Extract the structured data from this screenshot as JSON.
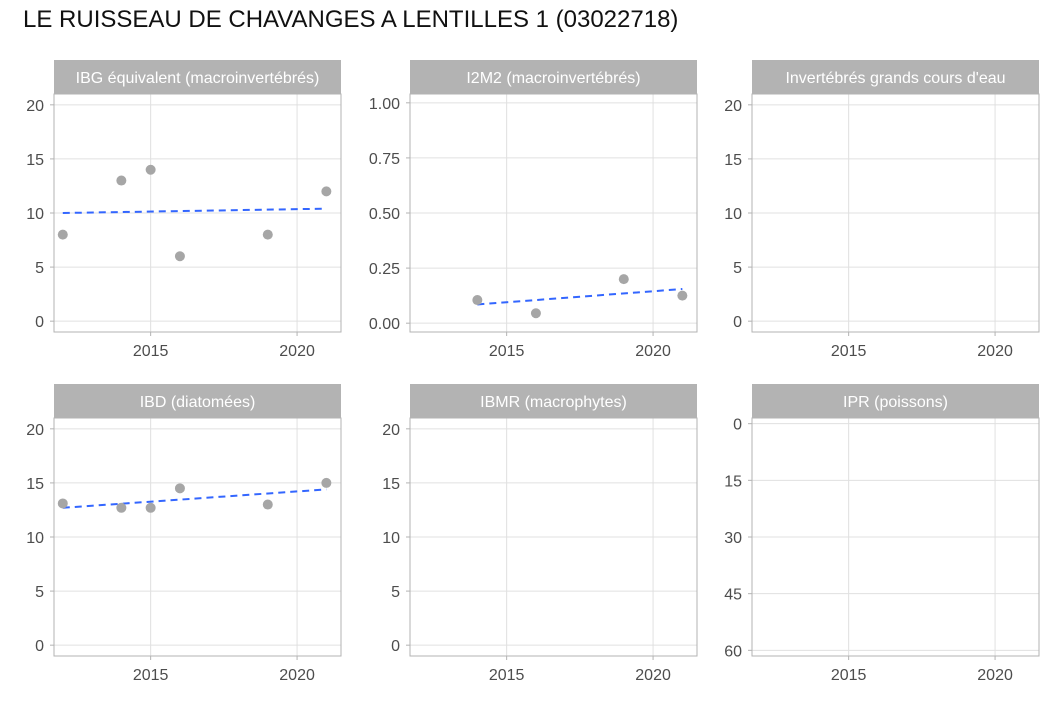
{
  "title": "LE RUISSEAU DE CHAVANGES A LENTILLES 1 (03022718)",
  "colors": {
    "strip": "#b3b3b3",
    "strip_text": "#ffffff",
    "point": "#a6a6a6",
    "trend": "#3366ff",
    "grid": "#e0e0e0",
    "border": "#b3b3b3",
    "axis_text": "#4d4d4d"
  },
  "chart_data": [
    {
      "type": "scatter",
      "title": "IBG équivalent (macroinvertébrés)",
      "xlim": [
        2011.7,
        2021.5
      ],
      "x_ticks": [
        2015,
        2020
      ],
      "x_tick_labels": [
        "2015",
        "2020"
      ],
      "ylim": [
        -1,
        21
      ],
      "y_ticks": [
        0,
        5,
        10,
        15,
        20
      ],
      "y_tick_labels": [
        "0",
        "5",
        "10",
        "15",
        "20"
      ],
      "y_reversed": false,
      "points": [
        {
          "x": 2012,
          "y": 8
        },
        {
          "x": 2014,
          "y": 13
        },
        {
          "x": 2015,
          "y": 14
        },
        {
          "x": 2016,
          "y": 6
        },
        {
          "x": 2019,
          "y": 8
        },
        {
          "x": 2021,
          "y": 12
        }
      ],
      "trend": {
        "x": [
          2012,
          2021
        ],
        "y": [
          10.0,
          10.4
        ]
      }
    },
    {
      "type": "scatter",
      "title": "I2M2 (macroinvertébrés)",
      "xlim": [
        2011.7,
        2021.5
      ],
      "x_ticks": [
        2015,
        2020
      ],
      "x_tick_labels": [
        "2015",
        "2020"
      ],
      "ylim": [
        -0.04,
        1.04
      ],
      "y_ticks": [
        0,
        0.25,
        0.5,
        0.75,
        1.0
      ],
      "y_tick_labels": [
        "0.00",
        "0.25",
        "0.50",
        "0.75",
        "1.00"
      ],
      "y_reversed": false,
      "points": [
        {
          "x": 2014,
          "y": 0.105
        },
        {
          "x": 2016,
          "y": 0.045
        },
        {
          "x": 2019,
          "y": 0.2
        },
        {
          "x": 2021,
          "y": 0.125
        }
      ],
      "trend": {
        "x": [
          2014,
          2021
        ],
        "y": [
          0.085,
          0.155
        ]
      }
    },
    {
      "type": "scatter",
      "title": "Invertébrés grands cours d'eau",
      "xlim": [
        2011.7,
        2021.5
      ],
      "x_ticks": [
        2015,
        2020
      ],
      "x_tick_labels": [
        "2015",
        "2020"
      ],
      "ylim": [
        -1,
        21
      ],
      "y_ticks": [
        0,
        5,
        10,
        15,
        20
      ],
      "y_tick_labels": [
        "0",
        "5",
        "10",
        "15",
        "20"
      ],
      "y_reversed": false,
      "points": [],
      "trend": null
    },
    {
      "type": "scatter",
      "title": "IBD (diatomées)",
      "xlim": [
        2011.7,
        2021.5
      ],
      "x_ticks": [
        2015,
        2020
      ],
      "x_tick_labels": [
        "2015",
        "2020"
      ],
      "ylim": [
        -1,
        21
      ],
      "y_ticks": [
        0,
        5,
        10,
        15,
        20
      ],
      "y_tick_labels": [
        "0",
        "5",
        "10",
        "15",
        "20"
      ],
      "y_reversed": false,
      "points": [
        {
          "x": 2012,
          "y": 13.1
        },
        {
          "x": 2014,
          "y": 12.7
        },
        {
          "x": 2015,
          "y": 12.7
        },
        {
          "x": 2016,
          "y": 14.5
        },
        {
          "x": 2019,
          "y": 13.0
        },
        {
          "x": 2021,
          "y": 15.0
        }
      ],
      "trend": {
        "x": [
          2012,
          2021
        ],
        "y": [
          12.7,
          14.4
        ]
      }
    },
    {
      "type": "scatter",
      "title": "IBMR (macrophytes)",
      "xlim": [
        2011.7,
        2021.5
      ],
      "x_ticks": [
        2015,
        2020
      ],
      "x_tick_labels": [
        "2015",
        "2020"
      ],
      "ylim": [
        -1,
        21
      ],
      "y_ticks": [
        0,
        5,
        10,
        15,
        20
      ],
      "y_tick_labels": [
        "0",
        "5",
        "10",
        "15",
        "20"
      ],
      "y_reversed": false,
      "points": [],
      "trend": null
    },
    {
      "type": "scatter",
      "title": "IPR (poissons)",
      "xlim": [
        2011.7,
        2021.5
      ],
      "x_ticks": [
        2015,
        2020
      ],
      "x_tick_labels": [
        "2015",
        "2020"
      ],
      "ylim": [
        -1.5,
        61.5
      ],
      "y_ticks": [
        0,
        15,
        30,
        45,
        60
      ],
      "y_tick_labels": [
        "0",
        "15",
        "30",
        "45",
        "60"
      ],
      "y_reversed": true,
      "points": [],
      "trend": null
    }
  ]
}
